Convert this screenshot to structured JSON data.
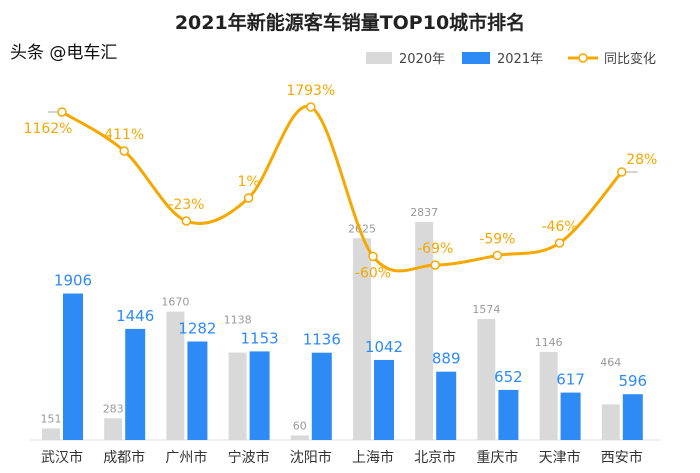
{
  "chart_data": {
    "type": "bar+line",
    "title": "2021年新能源客车销量TOP10城市排名",
    "categories": [
      "武汉市",
      "成都市",
      "广州市",
      "宁波市",
      "沈阳市",
      "上海市",
      "北京市",
      "重庆市",
      "天津市",
      "西安市"
    ],
    "series": [
      {
        "name": "2020年",
        "type": "bar",
        "color": "#d9d9d9",
        "values": [
          151,
          283,
          1670,
          1138,
          60,
          2625,
          2837,
          1574,
          1146,
          464
        ]
      },
      {
        "name": "2021年",
        "type": "bar",
        "color": "#2e8bf5",
        "values": [
          1906,
          1446,
          1282,
          1153,
          1136,
          1042,
          889,
          652,
          617,
          596
        ]
      },
      {
        "name": "同比变化",
        "type": "line",
        "color": "#f5a800",
        "unit": "%",
        "values": [
          1162,
          411,
          -23,
          1,
          1793,
          -60,
          -69,
          -59,
          -46,
          28
        ]
      }
    ],
    "legend": "top-right",
    "grid": false
  },
  "watermark": "头条 @电车汇"
}
